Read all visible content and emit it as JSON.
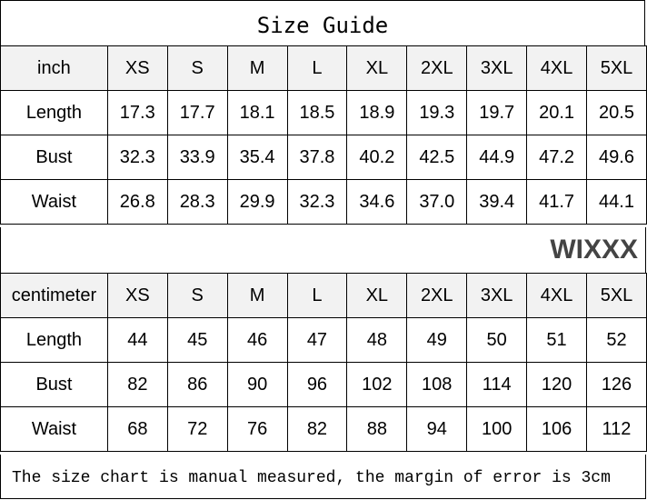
{
  "title": "Size Guide",
  "sizes": [
    "XS",
    "S",
    "M",
    "L",
    "XL",
    "2XL",
    "3XL",
    "4XL",
    "5XL"
  ],
  "inch": {
    "unit": "inch",
    "rows": [
      {
        "label": "Length",
        "values": [
          "17.3",
          "17.7",
          "18.1",
          "18.5",
          "18.9",
          "19.3",
          "19.7",
          "20.1",
          "20.5"
        ]
      },
      {
        "label": "Bust",
        "values": [
          "32.3",
          "33.9",
          "35.4",
          "37.8",
          "40.2",
          "42.5",
          "44.9",
          "47.2",
          "49.6"
        ]
      },
      {
        "label": "Waist",
        "values": [
          "26.8",
          "28.3",
          "29.9",
          "32.3",
          "34.6",
          "37.0",
          "39.4",
          "41.7",
          "44.1"
        ]
      }
    ]
  },
  "cm": {
    "unit": "centimeter",
    "rows": [
      {
        "label": "Length",
        "values": [
          "44",
          "45",
          "46",
          "47",
          "48",
          "49",
          "50",
          "51",
          "52"
        ]
      },
      {
        "label": "Bust",
        "values": [
          "82",
          "86",
          "90",
          "96",
          "102",
          "108",
          "114",
          "120",
          "126"
        ]
      },
      {
        "label": "Waist",
        "values": [
          "68",
          "72",
          "76",
          "82",
          "88",
          "94",
          "100",
          "106",
          "112"
        ]
      }
    ]
  },
  "footer": "The size chart is manual measured, the margin of error is 3cm",
  "watermark": "WIXXX"
}
